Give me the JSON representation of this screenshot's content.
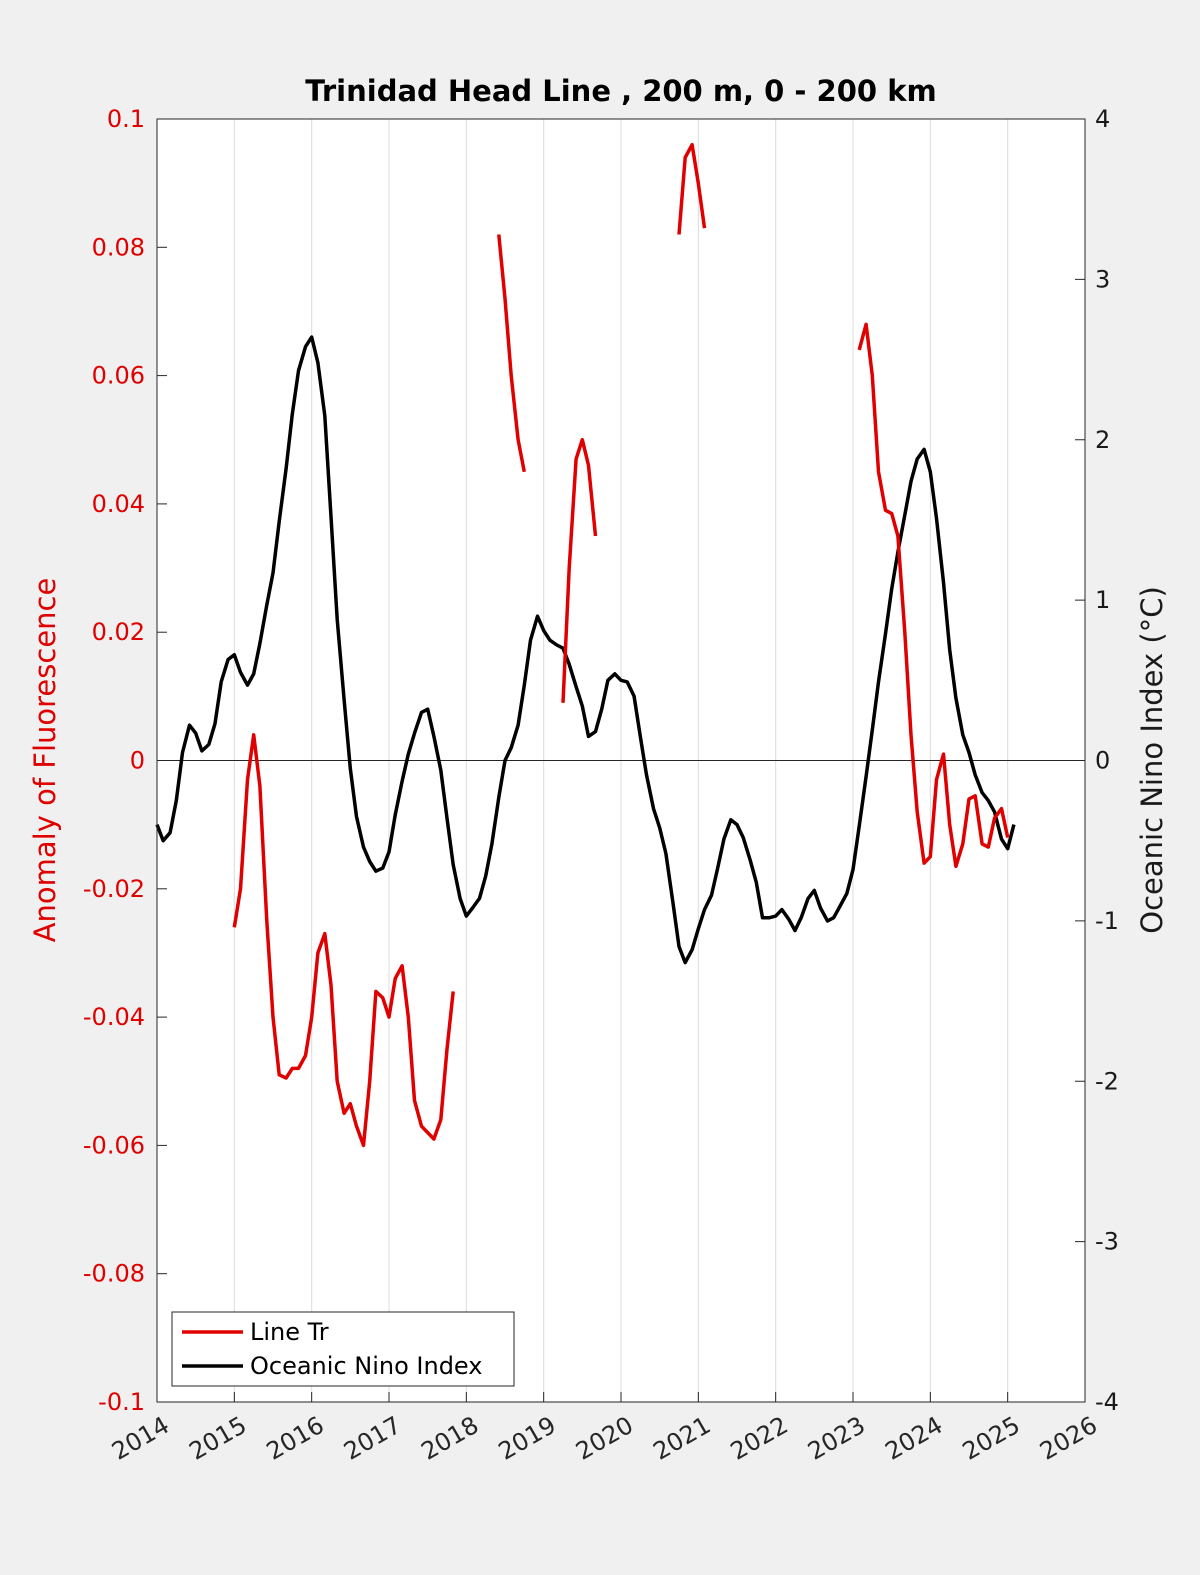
{
  "chart_data": {
    "type": "line",
    "title": "Trinidad Head Line , 200 m, 0 - 200 km",
    "xlabel": "",
    "ylabel_left": "Anomaly of Fluorescence",
    "ylabel_right": "Oceanic Nino Index (°C)",
    "xlim": [
      2014,
      2026
    ],
    "ylim_left": [
      -0.1,
      0.1
    ],
    "ylim_right": [
      -4,
      4
    ],
    "x_ticks": [
      "2014",
      "2015",
      "2016",
      "2017",
      "2018",
      "2019",
      "2020",
      "2021",
      "2022",
      "2023",
      "2024",
      "2025",
      "2026"
    ],
    "y_ticks_left": [
      "-0.1",
      "-0.08",
      "-0.06",
      "-0.04",
      "-0.02",
      "0",
      "0.02",
      "0.04",
      "0.06",
      "0.08",
      "0.1"
    ],
    "y_ticks_right": [
      "-4",
      "-3",
      "-2",
      "-1",
      "0",
      "1",
      "2",
      "3",
      "4"
    ],
    "vertical_grid": true,
    "zero_line": true,
    "legend_position": "bottom-left",
    "colors": {
      "line_tr": "#e00000",
      "oni": "#000000",
      "left_axis": "#e00000"
    },
    "series": [
      {
        "name": "Line Tr",
        "axis": "left",
        "segments": [
          [
            [
              2015.0,
              -0.026
            ],
            [
              2015.08,
              -0.02
            ],
            [
              2015.17,
              -0.003
            ],
            [
              2015.25,
              0.004
            ],
            [
              2015.33,
              -0.004
            ],
            [
              2015.42,
              -0.025
            ],
            [
              2015.5,
              -0.04
            ],
            [
              2015.58,
              -0.049
            ],
            [
              2015.67,
              -0.0495
            ],
            [
              2015.75,
              -0.048
            ],
            [
              2015.83,
              -0.048
            ],
            [
              2015.92,
              -0.046
            ],
            [
              2016.0,
              -0.04
            ],
            [
              2016.08,
              -0.03
            ],
            [
              2016.17,
              -0.027
            ],
            [
              2016.25,
              -0.035
            ],
            [
              2016.33,
              -0.05
            ],
            [
              2016.42,
              -0.055
            ],
            [
              2016.5,
              -0.0535
            ],
            [
              2016.58,
              -0.057
            ],
            [
              2016.67,
              -0.06
            ],
            [
              2016.75,
              -0.05
            ],
            [
              2016.83,
              -0.036
            ],
            [
              2016.92,
              -0.037
            ],
            [
              2017.0,
              -0.04
            ],
            [
              2017.08,
              -0.034
            ],
            [
              2017.17,
              -0.032
            ],
            [
              2017.25,
              -0.04
            ],
            [
              2017.33,
              -0.053
            ],
            [
              2017.42,
              -0.057
            ],
            [
              2017.5,
              -0.058
            ],
            [
              2017.58,
              -0.059
            ],
            [
              2017.67,
              -0.056
            ],
            [
              2017.75,
              -0.045
            ],
            [
              2017.83,
              -0.036
            ]
          ],
          [
            [
              2018.42,
              0.082
            ],
            [
              2018.5,
              0.072
            ],
            [
              2018.58,
              0.06
            ],
            [
              2018.67,
              0.05
            ],
            [
              2018.75,
              0.045
            ]
          ],
          [
            [
              2019.25,
              0.009
            ],
            [
              2019.33,
              0.03
            ],
            [
              2019.42,
              0.047
            ],
            [
              2019.5,
              0.05
            ],
            [
              2019.58,
              0.046
            ],
            [
              2019.67,
              0.035
            ]
          ],
          [
            [
              2020.75,
              0.082
            ],
            [
              2020.83,
              0.094
            ],
            [
              2020.92,
              0.096
            ],
            [
              2021.0,
              0.09
            ],
            [
              2021.08,
              0.083
            ]
          ],
          [
            [
              2023.08,
              0.064
            ],
            [
              2023.17,
              0.068
            ],
            [
              2023.25,
              0.06
            ],
            [
              2023.33,
              0.045
            ],
            [
              2023.42,
              0.039
            ],
            [
              2023.5,
              0.0385
            ],
            [
              2023.58,
              0.035
            ],
            [
              2023.67,
              0.02
            ],
            [
              2023.75,
              0.004
            ],
            [
              2023.83,
              -0.008
            ],
            [
              2023.92,
              -0.016
            ],
            [
              2024.0,
              -0.015
            ],
            [
              2024.08,
              -0.003
            ],
            [
              2024.17,
              0.001
            ],
            [
              2024.25,
              -0.01
            ],
            [
              2024.33,
              -0.0165
            ],
            [
              2024.42,
              -0.013
            ],
            [
              2024.5,
              -0.006
            ],
            [
              2024.58,
              -0.0055
            ],
            [
              2024.67,
              -0.013
            ],
            [
              2024.75,
              -0.0135
            ],
            [
              2024.83,
              -0.009
            ],
            [
              2024.92,
              -0.0075
            ],
            [
              2025.0,
              -0.012
            ]
          ]
        ]
      },
      {
        "name": "Oceanic Nino Index",
        "axis": "right",
        "points": [
          [
            2014.0,
            -0.4
          ],
          [
            2014.08,
            -0.5
          ],
          [
            2014.17,
            -0.45
          ],
          [
            2014.25,
            -0.25
          ],
          [
            2014.33,
            0.05
          ],
          [
            2014.42,
            0.22
          ],
          [
            2014.5,
            0.17
          ],
          [
            2014.58,
            0.06
          ],
          [
            2014.67,
            0.1
          ],
          [
            2014.75,
            0.23
          ],
          [
            2014.83,
            0.49
          ],
          [
            2014.92,
            0.63
          ],
          [
            2015.0,
            0.66
          ],
          [
            2015.08,
            0.55
          ],
          [
            2015.17,
            0.47
          ],
          [
            2015.25,
            0.54
          ],
          [
            2015.33,
            0.73
          ],
          [
            2015.42,
            0.97
          ],
          [
            2015.5,
            1.17
          ],
          [
            2015.58,
            1.49
          ],
          [
            2015.67,
            1.82
          ],
          [
            2015.75,
            2.16
          ],
          [
            2015.83,
            2.43
          ],
          [
            2015.92,
            2.58
          ],
          [
            2016.0,
            2.64
          ],
          [
            2016.08,
            2.48
          ],
          [
            2016.17,
            2.15
          ],
          [
            2016.25,
            1.52
          ],
          [
            2016.33,
            0.88
          ],
          [
            2016.42,
            0.38
          ],
          [
            2016.5,
            -0.05
          ],
          [
            2016.58,
            -0.35
          ],
          [
            2016.67,
            -0.54
          ],
          [
            2016.75,
            -0.63
          ],
          [
            2016.83,
            -0.69
          ],
          [
            2016.92,
            -0.67
          ],
          [
            2017.0,
            -0.57
          ],
          [
            2017.08,
            -0.34
          ],
          [
            2017.17,
            -0.13
          ],
          [
            2017.25,
            0.04
          ],
          [
            2017.33,
            0.17
          ],
          [
            2017.42,
            0.3
          ],
          [
            2017.5,
            0.32
          ],
          [
            2017.58,
            0.15
          ],
          [
            2017.67,
            -0.06
          ],
          [
            2017.75,
            -0.36
          ],
          [
            2017.83,
            -0.65
          ],
          [
            2017.92,
            -0.86
          ],
          [
            2018.0,
            -0.97
          ],
          [
            2018.08,
            -0.92
          ],
          [
            2018.17,
            -0.86
          ],
          [
            2018.25,
            -0.72
          ],
          [
            2018.33,
            -0.52
          ],
          [
            2018.42,
            -0.23
          ],
          [
            2018.5,
            0.0
          ],
          [
            2018.58,
            0.08
          ],
          [
            2018.67,
            0.22
          ],
          [
            2018.75,
            0.47
          ],
          [
            2018.83,
            0.75
          ],
          [
            2018.92,
            0.9
          ],
          [
            2019.0,
            0.81
          ],
          [
            2019.08,
            0.75
          ],
          [
            2019.17,
            0.72
          ],
          [
            2019.25,
            0.7
          ],
          [
            2019.33,
            0.6
          ],
          [
            2019.42,
            0.46
          ],
          [
            2019.5,
            0.34
          ],
          [
            2019.58,
            0.15
          ],
          [
            2019.67,
            0.18
          ],
          [
            2019.75,
            0.32
          ],
          [
            2019.83,
            0.5
          ],
          [
            2019.92,
            0.54
          ],
          [
            2020.0,
            0.5
          ],
          [
            2020.08,
            0.49
          ],
          [
            2020.17,
            0.4
          ],
          [
            2020.25,
            0.15
          ],
          [
            2020.33,
            -0.09
          ],
          [
            2020.42,
            -0.3
          ],
          [
            2020.5,
            -0.42
          ],
          [
            2020.58,
            -0.58
          ],
          [
            2020.67,
            -0.88
          ],
          [
            2020.75,
            -1.16
          ],
          [
            2020.83,
            -1.26
          ],
          [
            2020.92,
            -1.18
          ],
          [
            2021.0,
            -1.05
          ],
          [
            2021.08,
            -0.93
          ],
          [
            2021.17,
            -0.84
          ],
          [
            2021.25,
            -0.67
          ],
          [
            2021.33,
            -0.49
          ],
          [
            2021.42,
            -0.37
          ],
          [
            2021.5,
            -0.4
          ],
          [
            2021.58,
            -0.48
          ],
          [
            2021.67,
            -0.62
          ],
          [
            2021.75,
            -0.76
          ],
          [
            2021.83,
            -0.98
          ],
          [
            2021.92,
            -0.98
          ],
          [
            2022.0,
            -0.97
          ],
          [
            2022.08,
            -0.93
          ],
          [
            2022.17,
            -0.99
          ],
          [
            2022.25,
            -1.06
          ],
          [
            2022.33,
            -0.98
          ],
          [
            2022.42,
            -0.86
          ],
          [
            2022.5,
            -0.81
          ],
          [
            2022.58,
            -0.92
          ],
          [
            2022.67,
            -1.0
          ],
          [
            2022.75,
            -0.98
          ],
          [
            2022.83,
            -0.91
          ],
          [
            2022.92,
            -0.83
          ],
          [
            2023.0,
            -0.68
          ],
          [
            2023.08,
            -0.41
          ],
          [
            2023.17,
            -0.1
          ],
          [
            2023.25,
            0.19
          ],
          [
            2023.33,
            0.49
          ],
          [
            2023.42,
            0.79
          ],
          [
            2023.5,
            1.07
          ],
          [
            2023.58,
            1.3
          ],
          [
            2023.67,
            1.53
          ],
          [
            2023.75,
            1.74
          ],
          [
            2023.83,
            1.88
          ],
          [
            2023.92,
            1.94
          ],
          [
            2024.0,
            1.8
          ],
          [
            2024.08,
            1.51
          ],
          [
            2024.17,
            1.11
          ],
          [
            2024.25,
            0.69
          ],
          [
            2024.33,
            0.39
          ],
          [
            2024.42,
            0.16
          ],
          [
            2024.5,
            0.05
          ],
          [
            2024.58,
            -0.09
          ],
          [
            2024.67,
            -0.2
          ],
          [
            2024.75,
            -0.25
          ],
          [
            2024.83,
            -0.32
          ],
          [
            2024.92,
            -0.49
          ],
          [
            2025.0,
            -0.55
          ],
          [
            2025.08,
            -0.4
          ]
        ]
      }
    ]
  }
}
